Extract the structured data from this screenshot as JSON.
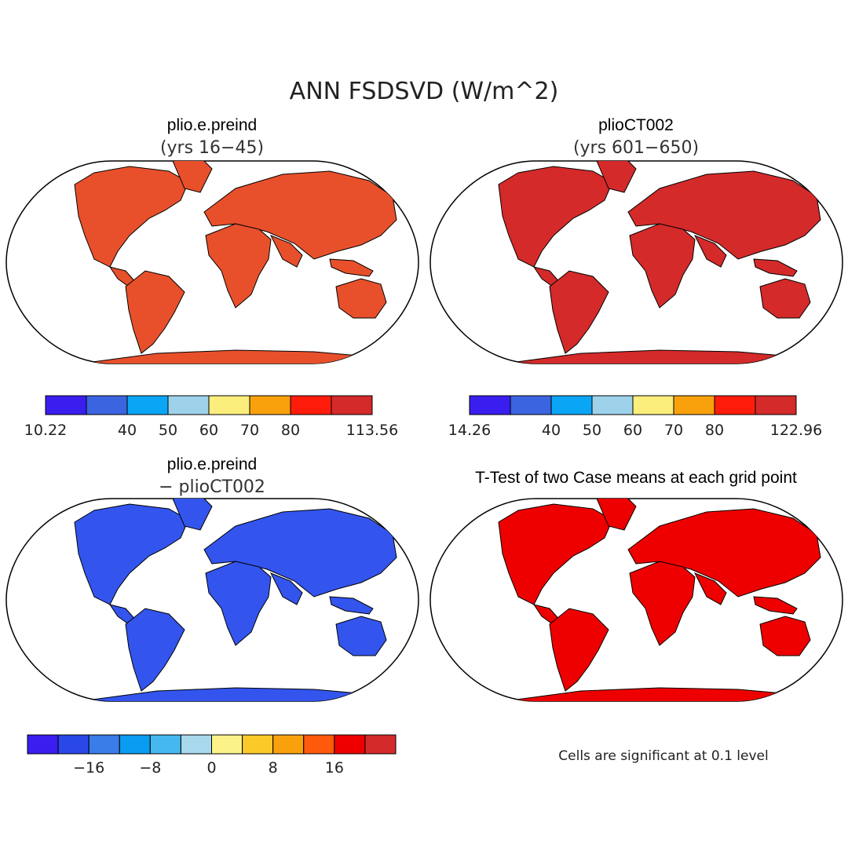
{
  "figure": {
    "title": "ANN FSDSVD (W/m^2)",
    "note": "Cells are significant at 0.1 level"
  },
  "panels": [
    {
      "id": "p1",
      "title": "plio.e.preind",
      "subtitle": "(yrs 16−45)",
      "dominant_color": "#e8502c"
    },
    {
      "id": "p2",
      "title": "plioCT002",
      "subtitle": "(yrs 601−650)",
      "dominant_color": "#d42a2a"
    },
    {
      "id": "p3",
      "title": "plio.e.preind",
      "subtitle": "− plioCT002",
      "dominant_color": "#3355ee"
    },
    {
      "id": "p4",
      "title": "T-Test of two Case means at each grid point",
      "subtitle": "",
      "dominant_color": "#ee0000"
    }
  ],
  "colorbars": [
    {
      "id": "cb1",
      "colors": [
        "#3a1ef0",
        "#3b64e0",
        "#0aa6f5",
        "#9ed2ea",
        "#fbee7c",
        "#f9a10d",
        "#ff1c0b",
        "#d42a2a"
      ],
      "labels": [
        {
          "text": "10.22",
          "at": 0
        },
        {
          "text": "40",
          "at": 2
        },
        {
          "text": "50",
          "at": 3
        },
        {
          "text": "60",
          "at": 4
        },
        {
          "text": "70",
          "at": 5
        },
        {
          "text": "80",
          "at": 6
        },
        {
          "text": "113.56",
          "at": 8
        }
      ]
    },
    {
      "id": "cb2",
      "colors": [
        "#3a1ef0",
        "#3b64e0",
        "#0aa6f5",
        "#9ed2ea",
        "#fbee7c",
        "#f9a10d",
        "#ff1c0b",
        "#d42a2a"
      ],
      "labels": [
        {
          "text": "14.26",
          "at": 0
        },
        {
          "text": "40",
          "at": 2
        },
        {
          "text": "50",
          "at": 3
        },
        {
          "text": "60",
          "at": 4
        },
        {
          "text": "70",
          "at": 5
        },
        {
          "text": "80",
          "at": 6
        },
        {
          "text": "122.96",
          "at": 8
        }
      ]
    },
    {
      "id": "cb3",
      "colors": [
        "#3a1ef0",
        "#2a48e8",
        "#3a7ce8",
        "#0a9cf0",
        "#45b8f0",
        "#a8d8ec",
        "#fbf38a",
        "#fbc92a",
        "#f9a10d",
        "#ff5a0b",
        "#ee0000",
        "#d42a2a"
      ],
      "labels": [
        {
          "text": "−16",
          "at": 2
        },
        {
          "text": "−8",
          "at": 4
        },
        {
          "text": "0",
          "at": 6
        },
        {
          "text": "8",
          "at": 8
        },
        {
          "text": "16",
          "at": 10
        }
      ]
    }
  ]
}
